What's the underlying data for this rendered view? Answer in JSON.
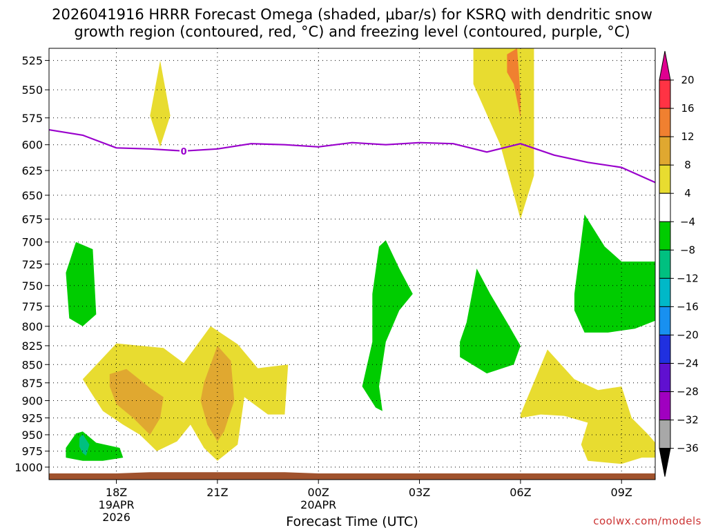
{
  "chart_data": {
    "type": "contour",
    "title_line1": "2026041916 HRRR Forecast Omega (shaded, μbar/s) for KSRQ with dendritic snow",
    "title_line2": "growth region (contoured, red, °C) and freezing level (contoured, purple, °C)",
    "xlabel": "Forecast Time (UTC)",
    "credit": "coolwx.com/models",
    "x_unit": "hours since 2026041916",
    "xlim": [
      0,
      18
    ],
    "x_ticks": [
      {
        "h": 2,
        "label": "18Z",
        "sub1": "19APR",
        "sub2": "2026"
      },
      {
        "h": 5,
        "label": "21Z",
        "sub1": "",
        "sub2": ""
      },
      {
        "h": 8,
        "label": "00Z",
        "sub1": "20APR",
        "sub2": ""
      },
      {
        "h": 11,
        "label": "03Z",
        "sub1": "",
        "sub2": ""
      },
      {
        "h": 14,
        "label": "06Z",
        "sub1": "",
        "sub2": ""
      },
      {
        "h": 17,
        "label": "09Z",
        "sub1": "",
        "sub2": ""
      }
    ],
    "y_axis": "pressure (mb), log scale, inverted",
    "ylim": [
      1020,
      515
    ],
    "y_ticks": [
      "525",
      "550",
      "575",
      "600",
      "625",
      "650",
      "675",
      "700",
      "725",
      "750",
      "775",
      "800",
      "825",
      "850",
      "875",
      "900",
      "925",
      "950",
      "975",
      "1000"
    ],
    "colorbar": {
      "labels": [
        "20",
        "16",
        "12",
        "8",
        "4",
        "−4",
        "−8",
        "−12",
        "−16",
        "−20",
        "−24",
        "−28",
        "−32",
        "−36"
      ],
      "colors": [
        "#ff3344",
        "#f08030",
        "#e0a830",
        "#e8dc30",
        "#ffffff",
        "#00cc00",
        "#00c080",
        "#00b8c8",
        "#1890f0",
        "#2030e0",
        "#6010d0",
        "#a000c0",
        "#a8a8a8"
      ],
      "top_arrow": "#e00090",
      "bottom_arrow": "#000000"
    },
    "freezing_level": {
      "label": "0",
      "label_at": [
        4.0,
        606
      ],
      "color": "#9900cc",
      "points": [
        [
          0,
          586
        ],
        [
          1,
          591
        ],
        [
          2,
          603
        ],
        [
          3,
          604
        ],
        [
          4,
          606
        ],
        [
          5,
          604
        ],
        [
          6,
          599
        ],
        [
          7,
          600
        ],
        [
          8,
          602
        ],
        [
          9,
          598
        ],
        [
          10,
          600
        ],
        [
          11,
          598
        ],
        [
          12,
          599
        ],
        [
          13,
          607
        ],
        [
          14,
          599
        ],
        [
          15,
          610
        ],
        [
          16,
          617
        ],
        [
          17,
          622
        ],
        [
          18,
          637
        ]
      ]
    },
    "terrain": {
      "color": "#a0522d",
      "points": [
        [
          0,
          1010
        ],
        [
          2,
          1010
        ],
        [
          3,
          1008
        ],
        [
          7,
          1008
        ],
        [
          8,
          1010
        ],
        [
          18,
          1010
        ]
      ]
    },
    "omega_regions": [
      {
        "level": "4 to 8",
        "color": "#e8dc30",
        "points": [
          [
            3.0,
            573
          ],
          [
            3.3,
            525
          ],
          [
            3.6,
            573
          ],
          [
            3.3,
            602
          ]
        ]
      },
      {
        "level": "4 to 8",
        "color": "#e8dc30",
        "points": [
          [
            1.0,
            870
          ],
          [
            2.0,
            822
          ],
          [
            3.4,
            828
          ],
          [
            4.0,
            848
          ],
          [
            4.8,
            800
          ],
          [
            5.6,
            823
          ],
          [
            6.2,
            855
          ],
          [
            7.1,
            850
          ],
          [
            7.0,
            920
          ],
          [
            6.5,
            920
          ],
          [
            5.8,
            895
          ],
          [
            5.6,
            965
          ],
          [
            5.0,
            990
          ],
          [
            4.6,
            970
          ],
          [
            4.2,
            935
          ],
          [
            3.8,
            960
          ],
          [
            3.2,
            975
          ],
          [
            2.7,
            950
          ],
          [
            2.2,
            935
          ],
          [
            1.6,
            915
          ],
          [
            1.2,
            885
          ]
        ]
      },
      {
        "level": "4 to 8",
        "color": "#e8dc30",
        "points": [
          [
            12.6,
            515
          ],
          [
            14.4,
            515
          ],
          [
            14.4,
            630
          ],
          [
            14.0,
            675
          ],
          [
            13.4,
            600
          ],
          [
            12.6,
            545
          ]
        ]
      },
      {
        "level": "4 to 8",
        "color": "#e8dc30",
        "points": [
          [
            14.0,
            920
          ],
          [
            14.8,
            830
          ],
          [
            15.6,
            870
          ],
          [
            16.3,
            885
          ],
          [
            17.0,
            880
          ],
          [
            17.3,
            925
          ],
          [
            17.8,
            950
          ],
          [
            18.0,
            962
          ],
          [
            18.0,
            985
          ],
          [
            17.6,
            985
          ],
          [
            17.0,
            995
          ],
          [
            16.0,
            990
          ],
          [
            15.8,
            965
          ],
          [
            16.0,
            932
          ],
          [
            15.3,
            922
          ],
          [
            14.6,
            920
          ],
          [
            14.0,
            925
          ]
        ]
      },
      {
        "level": "8 to 12",
        "color": "#e0a830",
        "points": [
          [
            1.8,
            863
          ],
          [
            2.3,
            856
          ],
          [
            3.0,
            882
          ],
          [
            3.4,
            895
          ],
          [
            3.3,
            925
          ],
          [
            3.0,
            950
          ],
          [
            2.5,
            925
          ],
          [
            2.0,
            905
          ],
          [
            1.8,
            880
          ]
        ]
      },
      {
        "level": "8 to 12",
        "color": "#e0a830",
        "points": [
          [
            4.6,
            875
          ],
          [
            5.0,
            825
          ],
          [
            5.4,
            845
          ],
          [
            5.5,
            900
          ],
          [
            5.2,
            945
          ],
          [
            5.0,
            960
          ],
          [
            4.7,
            935
          ],
          [
            4.5,
            900
          ]
        ]
      },
      {
        "level": "12 to 16",
        "color": "#f08030",
        "points": [
          [
            13.6,
            520
          ],
          [
            13.9,
            515
          ],
          [
            14.0,
            555
          ],
          [
            14.0,
            575
          ],
          [
            13.8,
            545
          ],
          [
            13.6,
            535
          ]
        ]
      },
      {
        "level": "-4 to -8",
        "color": "#00cc00",
        "points": [
          [
            0.5,
            735
          ],
          [
            0.8,
            700
          ],
          [
            1.3,
            708
          ],
          [
            1.4,
            785
          ],
          [
            1.0,
            800
          ],
          [
            0.6,
            790
          ]
        ]
      },
      {
        "level": "-4 to -8",
        "color": "#00cc00",
        "points": [
          [
            0.5,
            970
          ],
          [
            0.8,
            948
          ],
          [
            1.0,
            945
          ],
          [
            1.4,
            962
          ],
          [
            2.1,
            970
          ],
          [
            2.2,
            985
          ],
          [
            1.6,
            990
          ],
          [
            1.0,
            990
          ],
          [
            0.5,
            985
          ]
        ]
      },
      {
        "level": "-4 to -8",
        "color": "#00cc00",
        "points": [
          [
            9.6,
            760
          ],
          [
            9.8,
            705
          ],
          [
            10.0,
            698
          ],
          [
            10.4,
            730
          ],
          [
            10.8,
            760
          ],
          [
            10.4,
            780
          ],
          [
            10.0,
            820
          ],
          [
            9.8,
            880
          ],
          [
            9.9,
            915
          ],
          [
            9.7,
            910
          ],
          [
            9.3,
            880
          ],
          [
            9.6,
            820
          ]
        ]
      },
      {
        "level": "-4 to -8",
        "color": "#00cc00",
        "points": [
          [
            12.4,
            795
          ],
          [
            12.7,
            730
          ],
          [
            13.1,
            760
          ],
          [
            13.6,
            795
          ],
          [
            14.0,
            825
          ],
          [
            13.8,
            850
          ],
          [
            13.0,
            862
          ],
          [
            12.2,
            840
          ],
          [
            12.2,
            820
          ]
        ]
      },
      {
        "level": "-4 to -8",
        "color": "#00cc00",
        "points": [
          [
            15.6,
            760
          ],
          [
            15.9,
            670
          ],
          [
            16.5,
            705
          ],
          [
            17.0,
            722
          ],
          [
            18.0,
            722
          ],
          [
            18.0,
            793
          ],
          [
            17.4,
            803
          ],
          [
            16.6,
            808
          ],
          [
            15.9,
            808
          ],
          [
            15.6,
            780
          ]
        ]
      },
      {
        "level": "-8 to -12",
        "color": "#00c080",
        "points": [
          [
            0.9,
            955
          ],
          [
            1.0,
            949
          ],
          [
            1.2,
            965
          ],
          [
            1.1,
            982
          ],
          [
            1.0,
            978
          ],
          [
            0.9,
            968
          ]
        ]
      }
    ]
  }
}
